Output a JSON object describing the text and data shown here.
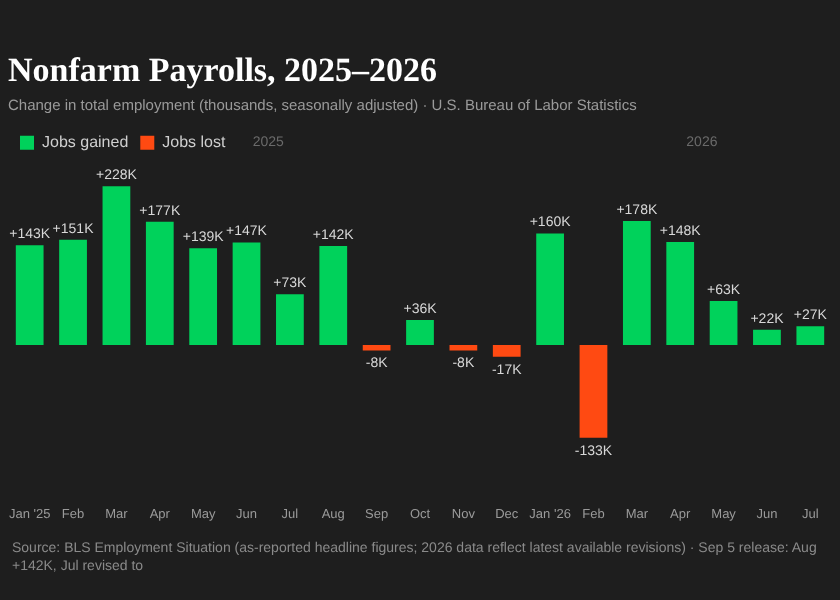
{
  "chart_data": {
    "type": "bar",
    "title": "Nonfarm Payrolls, 2025–2026",
    "subtitle": "Change in total employment (thousands, seasonally adjusted) · U.S. Bureau of Labor Statistics",
    "categories": [
      "Jan '25",
      "Feb",
      "Mar",
      "Apr",
      "May",
      "Jun",
      "Jul",
      "Aug",
      "Sep",
      "Oct",
      "Nov",
      "Dec",
      "Jan '26",
      "Feb",
      "Mar",
      "Apr",
      "May",
      "Jun",
      "Jul"
    ],
    "stacked": true,
    "series": [
      {
        "name": "Jobs gained",
        "color": "#00d25b",
        "values": [
          143,
          151,
          228,
          177,
          139,
          147,
          73,
          142,
          null,
          36,
          null,
          null,
          160,
          null,
          178,
          148,
          63,
          22,
          27
        ],
        "value_labels": [
          "+143K",
          "+151K",
          "+228K",
          "+177K",
          "+139K",
          "+147K",
          "+73K",
          "+142K",
          null,
          "+36K",
          null,
          null,
          "+160K",
          null,
          "+178K",
          "+148K",
          "+63K",
          "+22K",
          "+27K"
        ]
      },
      {
        "name": "Jobs lost",
        "color": "#ff4a12",
        "values": [
          null,
          null,
          null,
          null,
          null,
          null,
          null,
          null,
          -8,
          null,
          -8,
          -17,
          null,
          -133,
          null,
          null,
          null,
          null,
          null
        ],
        "value_labels": [
          null,
          null,
          null,
          null,
          null,
          null,
          null,
          null,
          "-8K",
          null,
          "-8K",
          "-17K",
          null,
          "-133K",
          null,
          null,
          null,
          null,
          null
        ]
      }
    ],
    "legend": "top left",
    "annotations": [
      "2025",
      "2026",
      "Source: BLS Employment Situation (as-reported headline figures; 2026 data reflect latest available revisions) · Sep 5 release: Aug +142K, Jul revised to"
    ]
  }
}
